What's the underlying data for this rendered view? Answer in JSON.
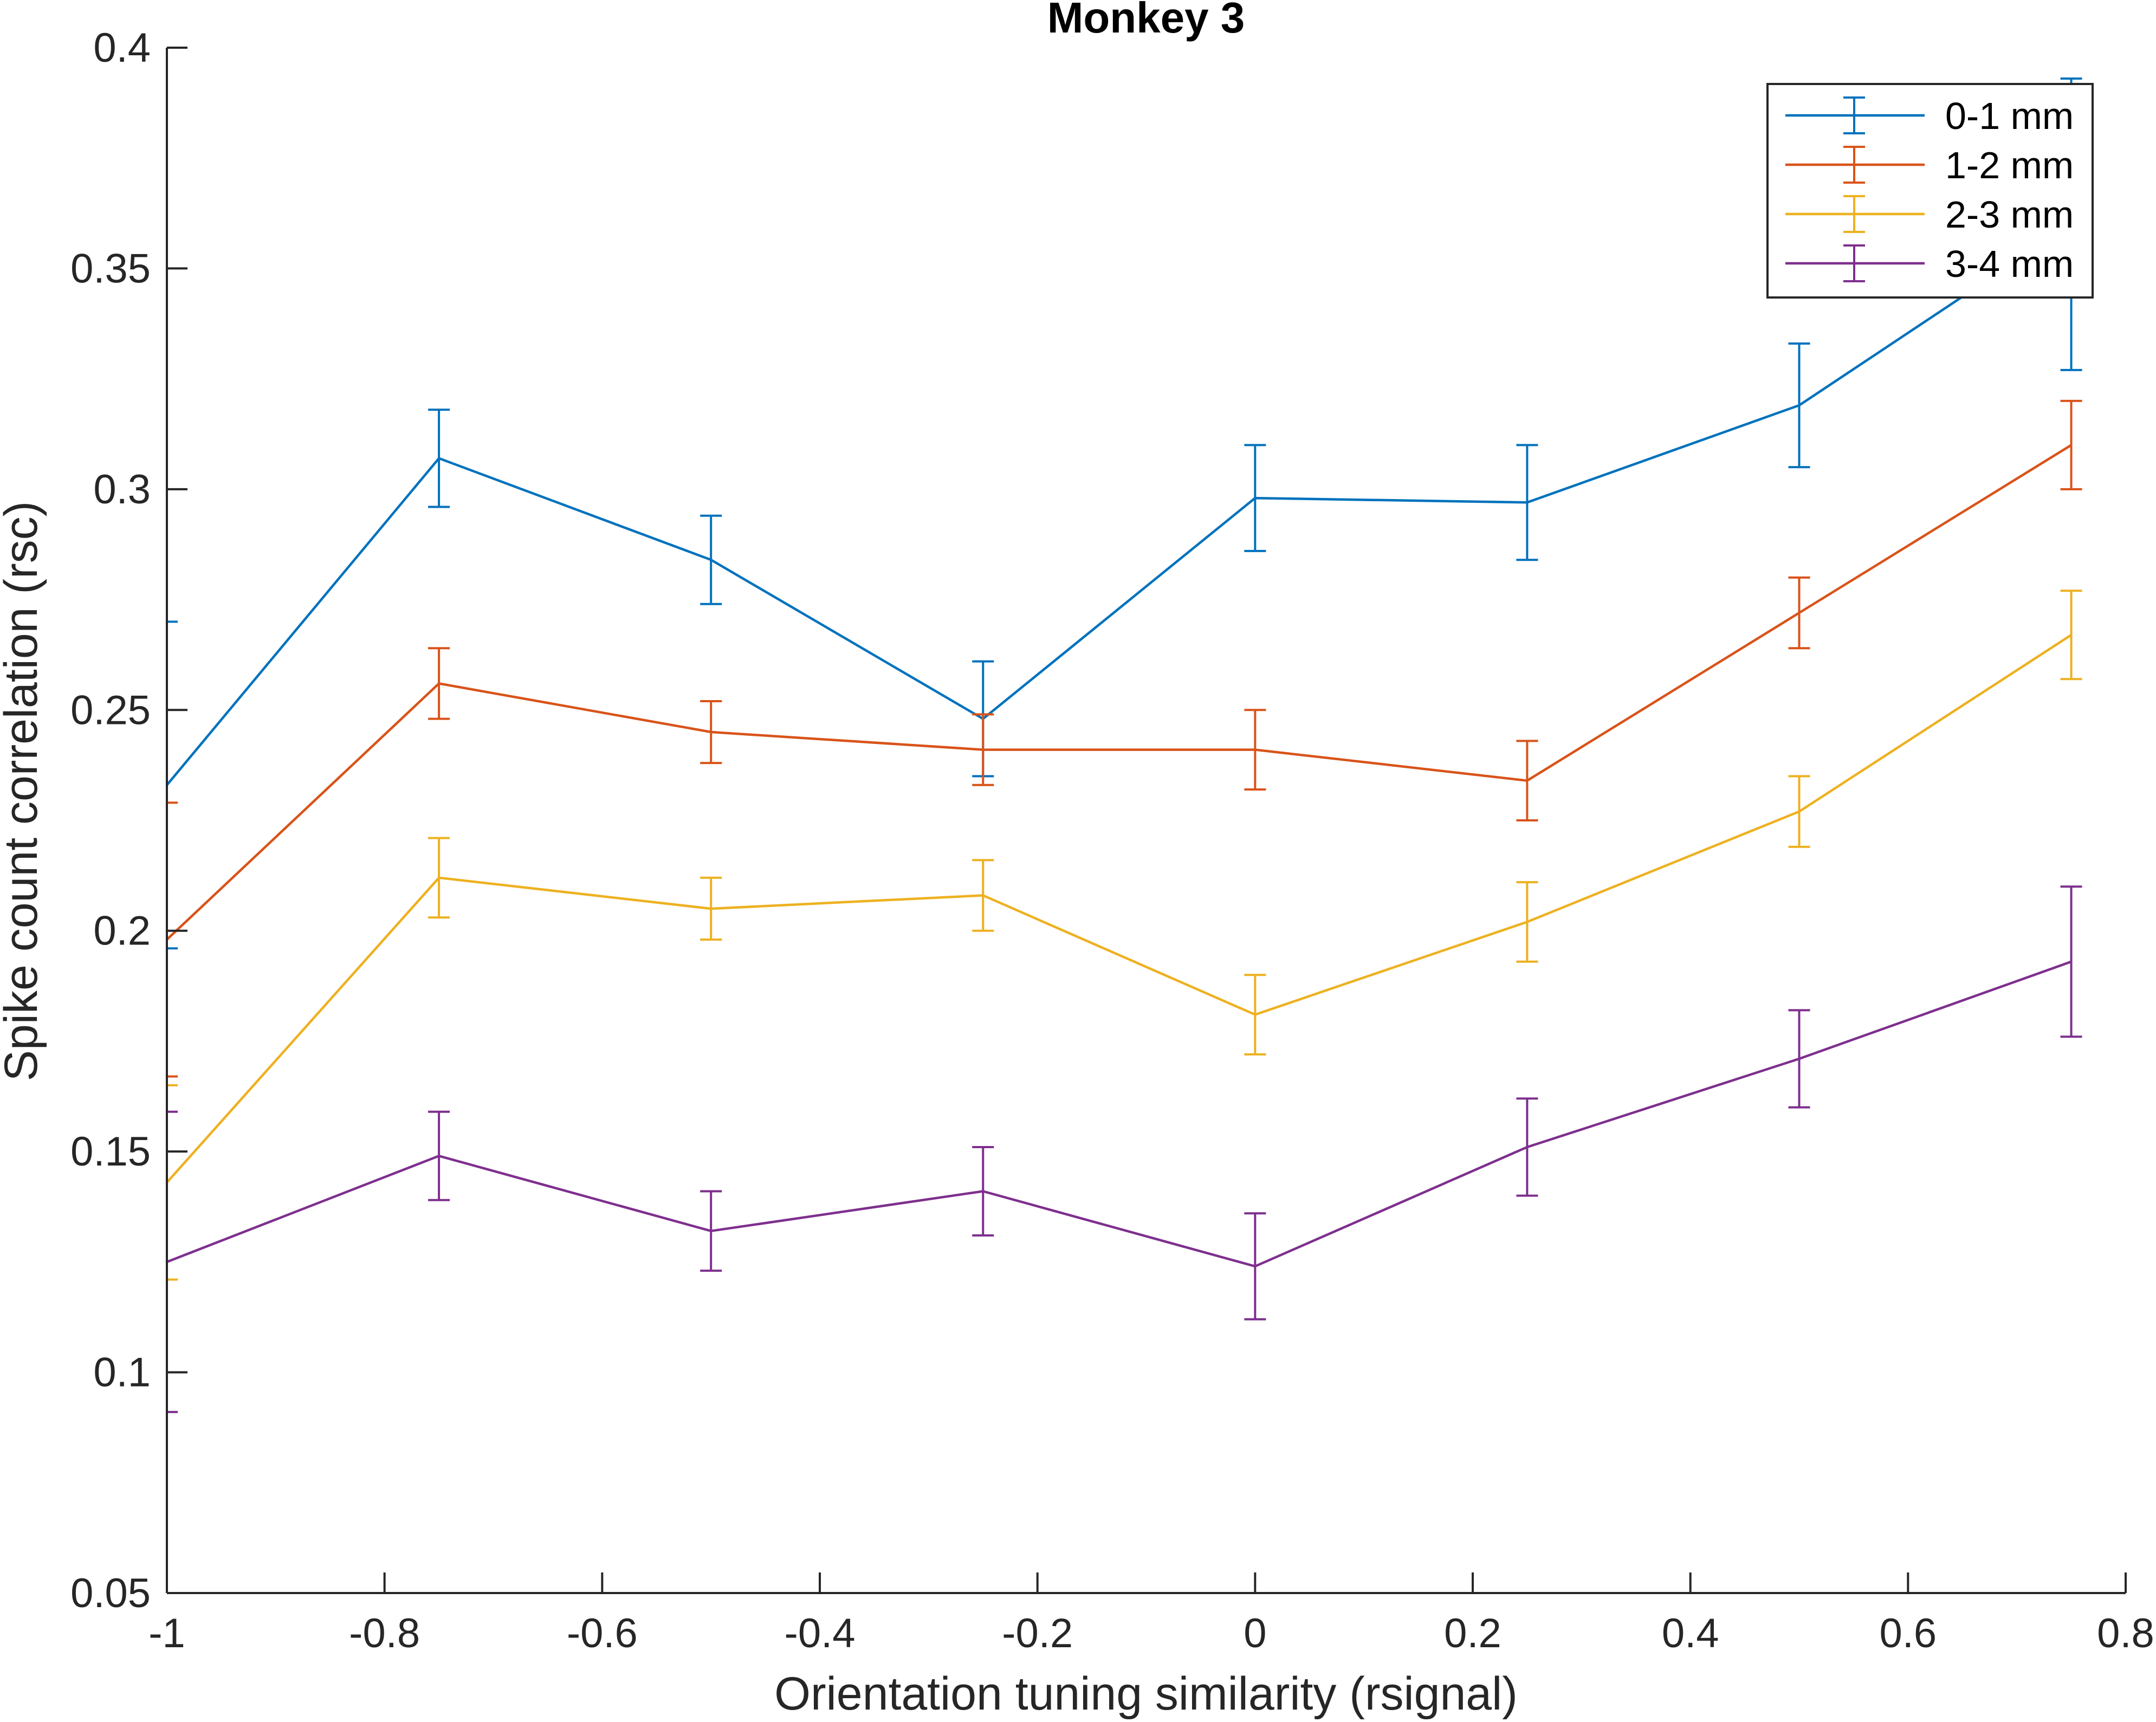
{
  "chart_data": {
    "type": "line",
    "title": "Monkey 3",
    "xlabel": "Orientation tuning similarity (rsignal)",
    "ylabel": "Spike count correlation (rsc)",
    "xlim": [
      -1,
      0.8
    ],
    "ylim": [
      0.05,
      0.4
    ],
    "x_ticks": [
      "-1",
      "-0.8",
      "-0.6",
      "-0.4",
      "-0.2",
      "0",
      "0.2",
      "0.4",
      "0.6",
      "0.8"
    ],
    "y_ticks": [
      "0.05",
      "0.1",
      "0.15",
      "0.2",
      "0.25",
      "0.3",
      "0.35",
      "0.4"
    ],
    "grid": false,
    "legend_position": "top-right",
    "error_bars": true,
    "x": [
      -1,
      -0.75,
      -0.5,
      -0.25,
      0,
      0.25,
      0.5,
      0.75
    ],
    "series": [
      {
        "name": "0-1 mm",
        "color": "#0072BD",
        "values": [
          0.233,
          0.307,
          0.284,
          0.248,
          0.298,
          0.297,
          0.319,
          0.36
        ],
        "err": [
          0.037,
          0.011,
          0.01,
          0.013,
          0.012,
          0.013,
          0.014,
          0.033
        ]
      },
      {
        "name": "1-2 mm",
        "color": "#D95319",
        "values": [
          0.198,
          0.256,
          0.245,
          0.241,
          0.241,
          0.234,
          0.272,
          0.31
        ],
        "err": [
          0.031,
          0.008,
          0.007,
          0.008,
          0.009,
          0.009,
          0.008,
          0.01
        ]
      },
      {
        "name": "2-3 mm",
        "color": "#EDB120",
        "values": [
          0.143,
          0.212,
          0.205,
          0.208,
          0.181,
          0.202,
          0.227,
          0.267
        ],
        "err": [
          0.022,
          0.009,
          0.007,
          0.008,
          0.009,
          0.009,
          0.008,
          0.01
        ]
      },
      {
        "name": "3-4 mm",
        "color": "#7E2F8E",
        "values": [
          0.125,
          0.149,
          0.132,
          0.141,
          0.124,
          0.151,
          0.171,
          0.193
        ],
        "err": [
          0.034,
          0.01,
          0.009,
          0.01,
          0.012,
          0.011,
          0.011,
          0.017
        ]
      }
    ]
  }
}
